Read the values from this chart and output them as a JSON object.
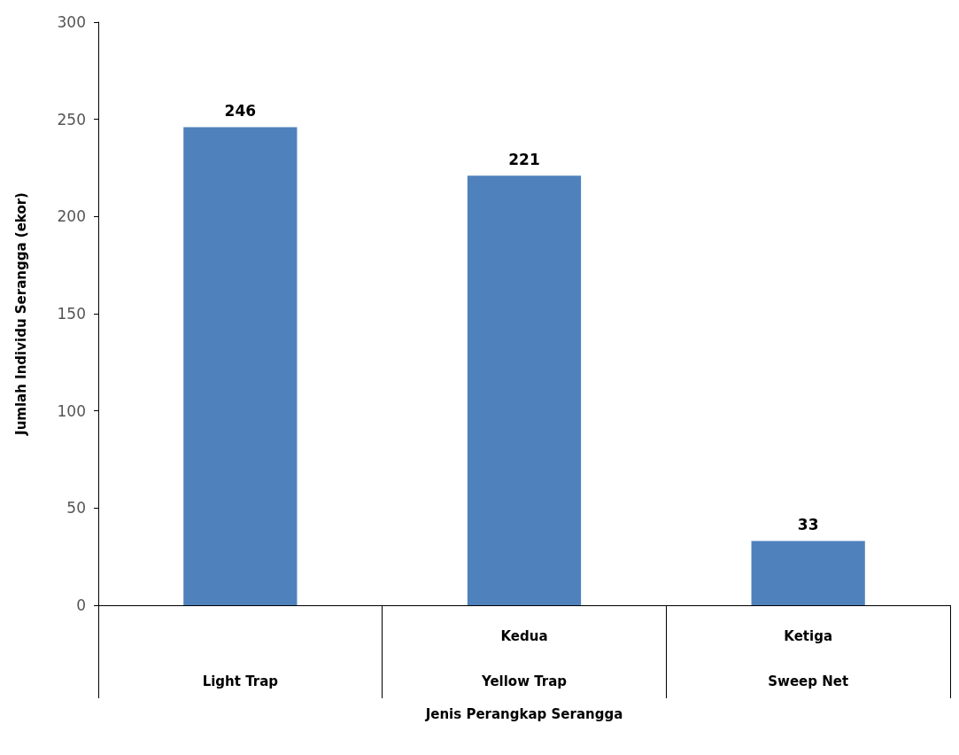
{
  "chart_data": {
    "type": "bar",
    "xlabel": "Jenis Perangkap Serangga",
    "ylabel": "Jumlah Individu Serangga (ekor)",
    "categories": [
      "Light Trap",
      "Yellow Trap",
      "Sweep Net"
    ],
    "annotations": [
      "Kedua",
      "Ketiga"
    ],
    "values": [
      246,
      221,
      33
    ],
    "color": "#4f81bd",
    "data_labels": true,
    "ylim": [
      0,
      300
    ],
    "yticks": [
      0,
      50,
      100,
      150,
      200,
      250,
      300
    ],
    "grid": false
  }
}
